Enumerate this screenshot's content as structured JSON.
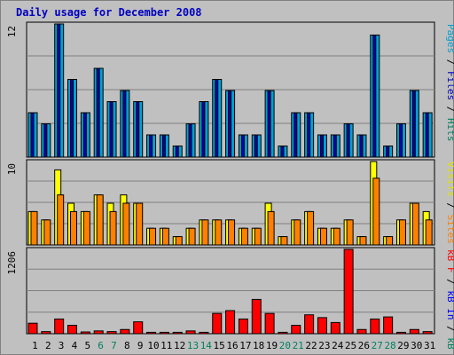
{
  "chart_data": {
    "type": "bar",
    "title": "Daily usage for December 2008",
    "days": [
      "1",
      "2",
      "3",
      "4",
      "5",
      "6",
      "7",
      "8",
      "9",
      "10",
      "11",
      "12",
      "13",
      "14",
      "15",
      "16",
      "17",
      "18",
      "19",
      "20",
      "21",
      "22",
      "23",
      "24",
      "25",
      "26",
      "27",
      "28",
      "29",
      "30",
      "31"
    ],
    "weekend_days": [
      "6",
      "7",
      "13",
      "14",
      "20",
      "21",
      "27",
      "28"
    ],
    "panels": [
      {
        "name": "hits-panel",
        "ymax_label": "12",
        "ylim": [
          0,
          12
        ],
        "legend": [
          {
            "text": "Pages",
            "color": "#00a0d0"
          },
          {
            "text": " / ",
            "color": "#000000"
          },
          {
            "text": "Files",
            "color": "#0000c0"
          },
          {
            "text": " / ",
            "color": "#000000"
          },
          {
            "text": "Hits",
            "color": "#008060"
          }
        ],
        "series": [
          {
            "name": "Hits",
            "color": "#00a0d0",
            "values": [
              4,
              3,
              12,
              7,
              4,
              8,
              5,
              6,
              5,
              2,
              2,
              1,
              3,
              5,
              7,
              6,
              2,
              2,
              6,
              1,
              4,
              4,
              2,
              2,
              3,
              2,
              11,
              1,
              3,
              6,
              4
            ]
          },
          {
            "name": "Files",
            "color": "#0000c0",
            "values": [
              4,
              3,
              12,
              7,
              4,
              8,
              5,
              6,
              5,
              2,
              2,
              1,
              3,
              5,
              7,
              6,
              2,
              2,
              6,
              1,
              4,
              4,
              2,
              2,
              3,
              2,
              11,
              1,
              3,
              6,
              4
            ]
          },
          {
            "name": "Pages",
            "color": "#00a0d0",
            "values": [
              4,
              3,
              12,
              7,
              4,
              8,
              5,
              6,
              5,
              2,
              2,
              1,
              3,
              5,
              7,
              6,
              2,
              2,
              6,
              1,
              4,
              4,
              2,
              2,
              3,
              2,
              11,
              1,
              3,
              6,
              4
            ]
          }
        ]
      },
      {
        "name": "visits-panel",
        "ymax_label": "10",
        "ylim": [
          0,
          10
        ],
        "legend": [
          {
            "text": "Visits",
            "color": "#e0e000"
          },
          {
            "text": " / ",
            "color": "#000000"
          },
          {
            "text": "Sites",
            "color": "#ff8000"
          }
        ],
        "series": [
          {
            "name": "Visits",
            "color": "#ffff00",
            "values": [
              4,
              3,
              9,
              5,
              4,
              6,
              5,
              6,
              5,
              2,
              2,
              1,
              2,
              3,
              3,
              3,
              2,
              2,
              5,
              1,
              3,
              4,
              2,
              2,
              3,
              1,
              10,
              1,
              3,
              5,
              4
            ]
          },
          {
            "name": "Sites",
            "color": "#ff8000",
            "values": [
              4,
              3,
              6,
              4,
              4,
              6,
              4,
              5,
              5,
              2,
              2,
              1,
              2,
              3,
              3,
              3,
              2,
              2,
              4,
              1,
              3,
              4,
              2,
              2,
              3,
              1,
              8,
              1,
              3,
              5,
              3
            ]
          }
        ]
      },
      {
        "name": "kbytes-panel",
        "ymax_label": "1206",
        "ylim": [
          0,
          1206
        ],
        "legend": [
          {
            "text": "kB F",
            "color": "#ff0000"
          },
          {
            "text": " / ",
            "color": "#000000"
          },
          {
            "text": "kB In",
            "color": "#0000ff"
          },
          {
            "text": " / ",
            "color": "#000000"
          },
          {
            "text": "kB Out",
            "color": "#008060"
          }
        ],
        "series": [
          {
            "name": "kB F",
            "color": "#ff0000",
            "values": [
              150,
              30,
              210,
              120,
              25,
              40,
              30,
              60,
              170,
              20,
              20,
              20,
              40,
              20,
              290,
              330,
              210,
              490,
              290,
              20,
              120,
              270,
              230,
              160,
              1206,
              60,
              210,
              240,
              20,
              60,
              30
            ]
          }
        ]
      }
    ]
  },
  "colors": {
    "frame_dark": "#808080",
    "frame_light": "#ffffff",
    "outer_bg": "#c0c0c0",
    "plot_bg": "#c0c0c0",
    "grid": "#808080",
    "title_color": "#0000c0",
    "weekday_color": "#000000",
    "weekend_color": "#008060"
  }
}
